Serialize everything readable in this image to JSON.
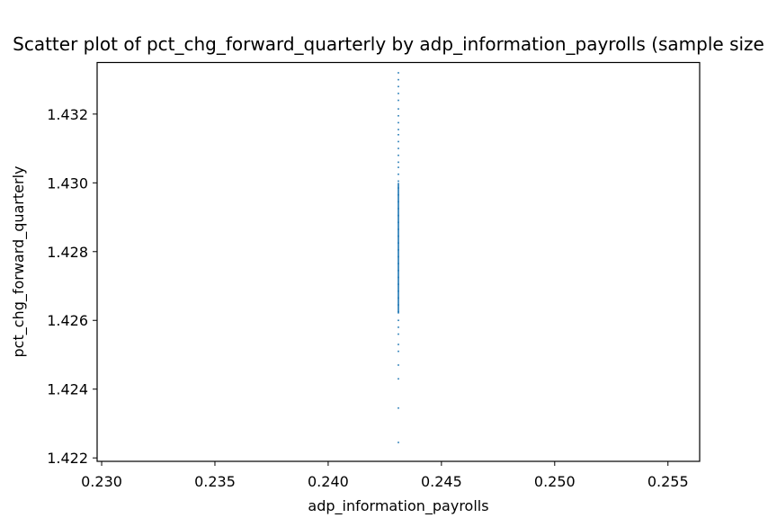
{
  "chart_data": {
    "type": "scatter",
    "title": "Scatter plot of pct_chg_forward_quarterly by adp_information_payrolls (sample size",
    "xlabel": "adp_information_payrolls",
    "ylabel": "pct_chg_forward_quarterly",
    "xlim": [
      0.2298,
      0.2564
    ],
    "ylim": [
      1.4219,
      1.4335
    ],
    "xticks": [
      {
        "value": 0.23,
        "label": "0.230"
      },
      {
        "value": 0.235,
        "label": "0.235"
      },
      {
        "value": 0.24,
        "label": "0.240"
      },
      {
        "value": 0.245,
        "label": "0.245"
      },
      {
        "value": 0.25,
        "label": "0.250"
      },
      {
        "value": 0.255,
        "label": "0.255"
      }
    ],
    "yticks": [
      {
        "value": 1.422,
        "label": "1.422"
      },
      {
        "value": 1.424,
        "label": "1.424"
      },
      {
        "value": 1.426,
        "label": "1.426"
      },
      {
        "value": 1.428,
        "label": "1.428"
      },
      {
        "value": 1.43,
        "label": "1.430"
      },
      {
        "value": 1.432,
        "label": "1.432"
      }
    ],
    "grid": false,
    "color": "#1f77b4",
    "series": [
      {
        "x": 0.2431,
        "y": [
          1.42245,
          1.42345,
          1.4243,
          1.4247,
          1.4251,
          1.4253,
          1.4256,
          1.4258,
          1.426,
          1.42625,
          1.42645,
          1.42665,
          1.42685,
          1.42705,
          1.42725,
          1.42745,
          1.42765,
          1.42785,
          1.42805,
          1.42825,
          1.42845,
          1.42865,
          1.42885,
          1.42905,
          1.42925,
          1.42945,
          1.42965,
          1.42985,
          1.43005,
          1.43025,
          1.43045,
          1.4306,
          1.4308,
          1.431,
          1.4312,
          1.4314,
          1.43155,
          1.43175,
          1.43195,
          1.43215,
          1.4324,
          1.4326,
          1.4328,
          1.433,
          1.4332
        ]
      }
    ]
  }
}
